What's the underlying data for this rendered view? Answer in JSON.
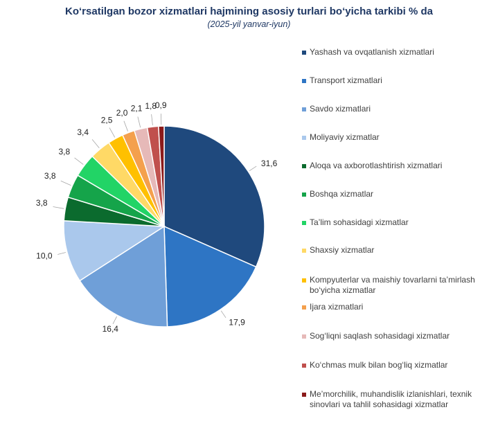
{
  "chart_data": {
    "type": "pie",
    "title": "Ko‘rsatilgan bozor xizmatlari hajmining asosiy turlari bo‘yicha tarkibi % da",
    "subtitle": "(2025-yil yanvar-iyun)",
    "legend_position": "right",
    "slices": [
      {
        "label": "Yashash va ovqatlanish xizmatlari",
        "value": 31.6,
        "value_label": "31,6",
        "color": "#1f497d"
      },
      {
        "label": "Transport xizmatlari",
        "value": 17.9,
        "value_label": "17,9",
        "color": "#2e75c4"
      },
      {
        "label": "Savdo xizmatlari",
        "value": 16.4,
        "value_label": "16,4",
        "color": "#6f9fd8"
      },
      {
        "label": "Moliyaviy xizmatlar",
        "value": 10.0,
        "value_label": "10,0",
        "color": "#aac8ec"
      },
      {
        "label": "Aloqa va axborotlashtirish xizmatlari",
        "value": 3.8,
        "value_label": "3,8",
        "color": "#0b6b2e"
      },
      {
        "label": "Boshqa xizmatlar",
        "value": 3.8,
        "value_label": "3,8",
        "color": "#15a44a"
      },
      {
        "label": "Ta’lim sohasidagi xizmatlar",
        "value": 3.8,
        "value_label": "3,8",
        "color": "#22d466"
      },
      {
        "label": "Shaxsiy xizmatlar",
        "value": 3.4,
        "value_label": "3,4",
        "color": "#ffd966"
      },
      {
        "label": "Kompyuterlar va maishiy tovarlarni ta’mirlash bo‘yicha xizmatlar",
        "value": 2.5,
        "value_label": "2,5",
        "color": "#ffc000"
      },
      {
        "label": "Ijara xizmatlari",
        "value": 2.0,
        "value_label": "2,0",
        "color": "#f4a04d"
      },
      {
        "label": "Sog‘liqni saqlash sohasidagi xizmatlar",
        "value": 2.1,
        "value_label": "2,1",
        "color": "#e6b9b8"
      },
      {
        "label": "Ko‘chmas mulk bilan bog‘liq xizmatlar",
        "value": 1.8,
        "value_label": "1,8",
        "color": "#c0504d"
      },
      {
        "label": "Me’morchilik, muhandislik izlanishlari, texnik sinovlari va tahlil sohasidagi xizmatlar",
        "value": 0.9,
        "value_label": "0,9",
        "color": "#8b1a1a"
      }
    ]
  }
}
